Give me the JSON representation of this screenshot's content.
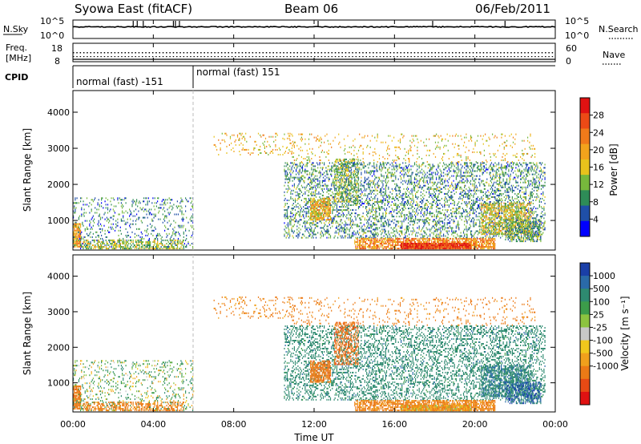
{
  "header": {
    "station": "Syowa East (fitACF)",
    "beam": "Beam 06",
    "date": "06/Feb/2011"
  },
  "top_panels": {
    "nsky_label": "N.Sky",
    "nsky_ticks": [
      "10^5",
      "10^0"
    ],
    "nsky_right_ticks": [
      "10^5",
      "10^0"
    ],
    "nsearch_label": "N.Search",
    "freq_label_line1": "Freq.",
    "freq_label_line2": "[MHz]",
    "freq_ticks": [
      "18",
      "8"
    ],
    "nave_label": "Nave",
    "nave_ticks": [
      "60",
      "0"
    ],
    "cpid_label": "CPID",
    "cpid_segments": [
      {
        "label": "normal (fast) -151",
        "start_hour": 0,
        "end_hour": 6
      },
      {
        "label": "normal (fast) 151",
        "start_hour": 6,
        "end_hour": 24
      }
    ]
  },
  "xaxis": {
    "label": "Time UT",
    "ticks": [
      "00:00",
      "04:00",
      "08:00",
      "12:00",
      "16:00",
      "20:00",
      "00:00"
    ]
  },
  "power_panel": {
    "ylabel": "Slant Range [km]",
    "yticks": [
      "1000",
      "2000",
      "3000",
      "4000"
    ],
    "colorbar_label": "Power [dB]",
    "colorbar_ticks": [
      "4",
      "8",
      "12",
      "16",
      "20",
      "24",
      "28"
    ],
    "colors": [
      "#0000ff",
      "#1f4fa8",
      "#2e8c57",
      "#77b83c",
      "#e8c21c",
      "#f2a31c",
      "#f07a1a",
      "#ec4a16",
      "#e01212"
    ]
  },
  "velocity_panel": {
    "ylabel": "Slant Range [km]",
    "yticks": [
      "1000",
      "2000",
      "3000",
      "4000"
    ],
    "colorbar_label": "Velocity [m s⁻¹]",
    "colorbar_ticks": [
      "1000",
      "500",
      "100",
      "25",
      "-25",
      "-100",
      "-500",
      "-1000"
    ],
    "colors": [
      "#1a3fa8",
      "#2a6aa8",
      "#2e8a70",
      "#3c9c4a",
      "#8cc440",
      "#c8c8c8",
      "#f0c81c",
      "#f0a01c",
      "#ec7a16",
      "#e84a14",
      "#e01212"
    ]
  },
  "chart_data": {
    "type": "heatmap",
    "title": "Syowa East (fitACF) Beam 06 06/Feb/2011",
    "xlabel": "Time UT",
    "ylabel": "Slant Range [km]",
    "xlim": [
      0,
      24
    ],
    "ylim": [
      180,
      4600
    ],
    "mode_change_hour": 6,
    "power_colorbar": {
      "label": "Power [dB]",
      "range": [
        0,
        32
      ]
    },
    "velocity_colorbar": {
      "label": "Velocity [m s⁻¹]",
      "range": [
        -1000,
        1000
      ]
    },
    "echo_regions": [
      {
        "t_start": 0.0,
        "t_end": 0.4,
        "r_start": 250,
        "r_end": 900,
        "power_db": 20,
        "velocity": -300,
        "density": 0.8
      },
      {
        "t_start": 0.0,
        "t_end": 6.0,
        "r_start": 200,
        "r_end": 1600,
        "power_db": 8,
        "velocity": 50,
        "density": 0.15
      },
      {
        "t_start": 0.5,
        "t_end": 5.5,
        "r_start": 200,
        "r_end": 450,
        "power_db": 14,
        "velocity": -200,
        "density": 0.4
      },
      {
        "t_start": 7.0,
        "t_end": 11.0,
        "r_start": 2800,
        "r_end": 3400,
        "power_db": 18,
        "velocity": -150,
        "density": 0.12
      },
      {
        "t_start": 10.5,
        "t_end": 23.5,
        "r_start": 500,
        "r_end": 2600,
        "power_db": 9,
        "velocity": 300,
        "density": 0.3
      },
      {
        "t_start": 11.8,
        "t_end": 12.8,
        "r_start": 1000,
        "r_end": 1600,
        "power_db": 18,
        "velocity": -300,
        "density": 0.7
      },
      {
        "t_start": 13.0,
        "t_end": 14.2,
        "r_start": 1500,
        "r_end": 2700,
        "power_db": 12,
        "velocity": -400,
        "density": 0.4
      },
      {
        "t_start": 14.0,
        "t_end": 21.0,
        "r_start": 200,
        "r_end": 500,
        "power_db": 22,
        "velocity": -150,
        "density": 0.7
      },
      {
        "t_start": 16.3,
        "t_end": 19.8,
        "r_start": 200,
        "r_end": 380,
        "power_db": 28,
        "velocity": -80,
        "density": 0.95
      },
      {
        "t_start": 20.3,
        "t_end": 22.8,
        "r_start": 600,
        "r_end": 1500,
        "power_db": 16,
        "velocity": 400,
        "density": 0.5
      },
      {
        "t_start": 21.5,
        "t_end": 23.3,
        "r_start": 400,
        "r_end": 1000,
        "power_db": 10,
        "velocity": 800,
        "density": 0.5
      },
      {
        "t_start": 10.5,
        "t_end": 23.0,
        "r_start": 2600,
        "r_end": 3400,
        "power_db": 17,
        "velocity": -200,
        "density": 0.08
      }
    ]
  }
}
